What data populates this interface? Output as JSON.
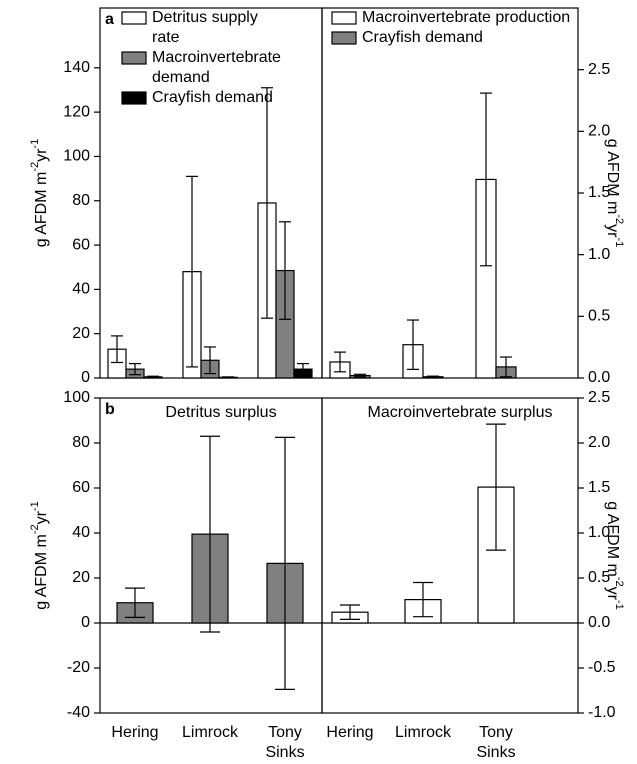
{
  "chart_data": [
    {
      "type": "bar",
      "panel_label": "a",
      "categories": [
        null,
        null,
        null
      ],
      "ylabel": [
        "g AFDM m",
        "-2",
        "yr",
        "-1"
      ],
      "ylim": [
        0,
        167
      ],
      "yticks": [
        0,
        20,
        40,
        60,
        80,
        100,
        120,
        140
      ],
      "legend": "upper left",
      "series": [
        {
          "name": "Detritus supply rate",
          "color": "#ffffff",
          "values": [
            13,
            48,
            79
          ],
          "errors": [
            6,
            43,
            52
          ]
        },
        {
          "name": "Macroinvertebrate demand",
          "color": "#808080",
          "values": [
            4,
            8,
            48.5
          ],
          "errors": [
            2.5,
            6,
            22
          ]
        },
        {
          "name": "Crayfish demand",
          "color": "#000000",
          "values": [
            0.5,
            0.3,
            4
          ],
          "errors": [
            0.3,
            0.2,
            2.5
          ]
        }
      ]
    },
    {
      "type": "bar",
      "categories": [
        null,
        null,
        null
      ],
      "ylabel": [
        "g AFDM m",
        "-2",
        "yr",
        "-1"
      ],
      "y2lim": [
        0,
        3.0
      ],
      "y2ticks": [
        {
          "value": 0,
          "label": "0.0"
        },
        {
          "value": 0.5,
          "label": "0.5"
        },
        {
          "value": 1,
          "label": "1.0"
        },
        {
          "value": 1.5,
          "label": "1.5"
        },
        {
          "value": 2,
          "label": "2.0"
        },
        {
          "value": 2.5,
          "label": "2.5"
        }
      ],
      "legend": "upper left",
      "series": [
        {
          "name": "Macroinvertebrate production",
          "color": "#ffffff",
          "axis": "y2",
          "values": [
            0.13,
            0.27,
            1.61
          ],
          "errors": [
            0.08,
            0.2,
            0.7
          ]
        },
        {
          "name": "Crayfish demand",
          "color": "#808080",
          "axis": "y2",
          "values": [
            0.02,
            0.01,
            0.09
          ],
          "errors": [
            0.01,
            0.005,
            0.08
          ]
        }
      ]
    },
    {
      "type": "bar",
      "panel_label": "b",
      "title": "Detritus surplus",
      "categories": [
        "Hering",
        "Limrock",
        "Tony Sinks"
      ],
      "ylabel": [
        "g AFDM m",
        "-2",
        "yr",
        "-1"
      ],
      "ylim": [
        -40,
        100
      ],
      "yticks": [
        -40,
        -20,
        0,
        20,
        40,
        60,
        80,
        100
      ],
      "series": [
        {
          "color": "#808080",
          "values": [
            9,
            39.5,
            26.5
          ],
          "errors": [
            6.5,
            43.5,
            56
          ]
        }
      ]
    },
    {
      "type": "bar",
      "title": "Macroinvertebrate surplus",
      "categories": [
        "Hering",
        "Limrock",
        "Tony Sinks"
      ],
      "ylabel": [
        "g AFDM m",
        "-2",
        "yr",
        "-1"
      ],
      "y2lim": [
        -1.0,
        2.5
      ],
      "y2ticks": [
        {
          "value": -1,
          "label": "-1.0"
        },
        {
          "value": -0.5,
          "label": "-0.5"
        },
        {
          "value": 0,
          "label": "0.0"
        },
        {
          "value": 0.5,
          "label": "0.5"
        },
        {
          "value": 1,
          "label": "1.0"
        },
        {
          "value": 1.5,
          "label": "1.5"
        },
        {
          "value": 2,
          "label": "2.0"
        },
        {
          "value": 2.5,
          "label": "2.5"
        }
      ],
      "series": [
        {
          "color": "#ffffff",
          "axis": "y2",
          "values": [
            0.12,
            0.26,
            1.51
          ],
          "errors": [
            0.08,
            0.19,
            0.7
          ]
        }
      ]
    }
  ]
}
